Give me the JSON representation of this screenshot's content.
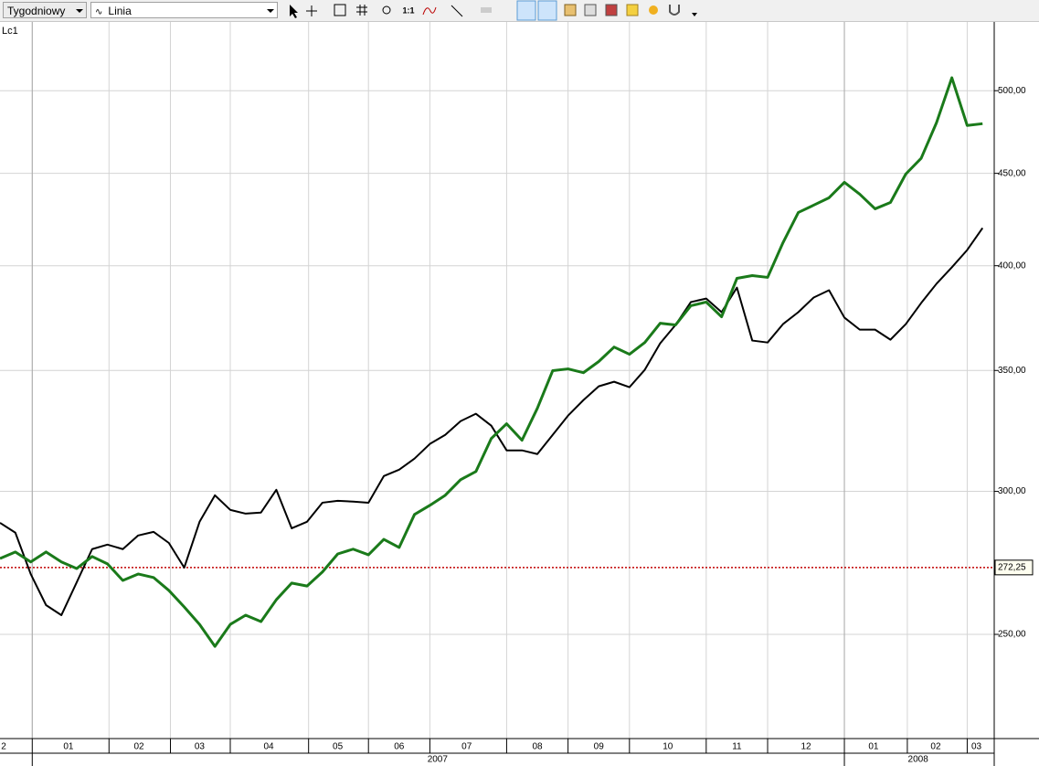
{
  "toolbar": {
    "period": "Tygodniowy",
    "chart_style": "Linia",
    "zoom_label": "1:1"
  },
  "series_menu": "Lc1",
  "chart_data": {
    "type": "line",
    "log_scale": true,
    "grid": true,
    "x": [
      0,
      1,
      2,
      3,
      4,
      5,
      6,
      7,
      8,
      9,
      10,
      11,
      12,
      13,
      14,
      15,
      16,
      17,
      18,
      19,
      20,
      21,
      22,
      23,
      24,
      25,
      26,
      27,
      28,
      29,
      30,
      31,
      32,
      33,
      34,
      35,
      36,
      37,
      38,
      39,
      40,
      41,
      42,
      43,
      44,
      45,
      46,
      47,
      48,
      49,
      50,
      51,
      52,
      53,
      54,
      55,
      56,
      57,
      58,
      59,
      60,
      61,
      62,
      63,
      64
    ],
    "xlim": [
      0,
      64.76
    ],
    "series": [
      {
        "color": "#000000",
        "width": 2,
        "values": [
          288.2,
          284.6,
          270.0,
          259.5,
          256.2,
          267.2,
          278.7,
          280.3,
          278.7,
          283.6,
          284.9,
          280.9,
          272.2,
          288.6,
          298.5,
          293.0,
          291.6,
          292.0,
          300.6,
          286.2,
          288.6,
          295.7,
          296.4,
          296.1,
          295.7,
          305.9,
          308.4,
          312.8,
          318.7,
          322.4,
          328.1,
          331.2,
          326.2,
          316.1,
          316.1,
          314.6,
          322.4,
          330.4,
          337.0,
          343.0,
          345.0,
          342.6,
          350.3,
          362.3,
          370.9,
          381.9,
          383.6,
          377.0,
          389.0,
          363.6,
          362.7,
          371.3,
          377.0,
          384.1,
          387.7,
          374.4,
          368.7,
          368.7,
          364.0,
          371.3,
          381.4,
          390.9,
          399.2,
          408.1,
          419.7
        ]
      },
      {
        "color": "#1a7a1a",
        "width": 3,
        "values": [
          275.4,
          277.7,
          274.2,
          277.7,
          274.2,
          271.9,
          276.1,
          273.5,
          267.8,
          270.0,
          268.8,
          264.4,
          258.9,
          253.2,
          246.2,
          253.2,
          256.2,
          254.1,
          261.3,
          266.9,
          265.9,
          270.7,
          277.0,
          278.7,
          276.7,
          282.2,
          279.3,
          291.3,
          294.7,
          298.5,
          304.5,
          307.7,
          320.9,
          327.0,
          320.2,
          333.5,
          349.9,
          350.7,
          349.0,
          354.0,
          360.6,
          357.3,
          362.7,
          371.7,
          370.9,
          380.1,
          381.9,
          374.8,
          393.6,
          395.0,
          394.1,
          411.9,
          428.1,
          432.1,
          436.2,
          444.9,
          438.2,
          430.1,
          433.6,
          449.6,
          458.7,
          480.0,
          508.3,
          478.3,
          479.4
        ]
      }
    ],
    "ylim": [
      218.9,
      545.8
    ],
    "yticks": [
      {
        "value": 250,
        "label": "250,00"
      },
      {
        "value": 300,
        "label": "300,00"
      },
      {
        "value": 350,
        "label": "350,00"
      },
      {
        "value": 400,
        "label": "400,00"
      },
      {
        "value": 450,
        "label": "450,00"
      },
      {
        "value": 500,
        "label": "500,00"
      }
    ],
    "month_separators": [
      2.1,
      7.1,
      11.1,
      15,
      20.1,
      24,
      28,
      33,
      37,
      41,
      46,
      50,
      55,
      59.1,
      63
    ],
    "month_labels": [
      {
        "value": 0.24,
        "label": "2"
      },
      {
        "value": 4.46,
        "label": "01"
      },
      {
        "value": 9.05,
        "label": "02"
      },
      {
        "value": 13,
        "label": "03"
      },
      {
        "value": 17.5,
        "label": "04"
      },
      {
        "value": 22,
        "label": "05"
      },
      {
        "value": 26,
        "label": "06"
      },
      {
        "value": 30.4,
        "label": "07"
      },
      {
        "value": 35,
        "label": "08"
      },
      {
        "value": 39,
        "label": "09"
      },
      {
        "value": 43.5,
        "label": "10"
      },
      {
        "value": 48,
        "label": "11"
      },
      {
        "value": 52.5,
        "label": "12"
      },
      {
        "value": 56.9,
        "label": "01"
      },
      {
        "value": 60.95,
        "label": "02"
      },
      {
        "value": 63.6,
        "label": "03"
      }
    ],
    "year_separators": [
      2.1,
      55
    ],
    "year_labels": [
      {
        "value": 28.5,
        "label": "2007"
      },
      {
        "value": 59.8,
        "label": "2008"
      }
    ],
    "last_price": {
      "value": 272.25,
      "label": "272,25",
      "color": "#c00000"
    }
  }
}
